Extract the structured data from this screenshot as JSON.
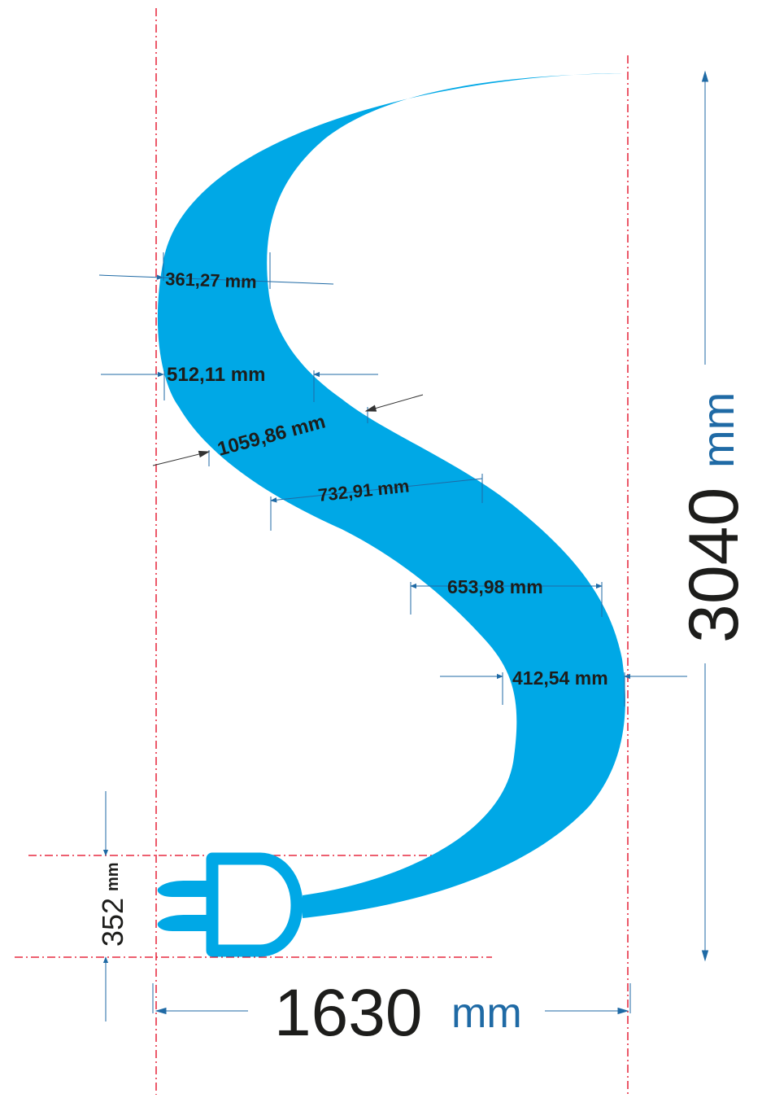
{
  "colors": {
    "shape": "#00a8e6",
    "guide": "#e2001a",
    "dimension": "#1f6aa5",
    "text": "#1d1d1b"
  },
  "dimensions": {
    "width": {
      "value": "1630",
      "unit": "mm"
    },
    "height": {
      "value": "3040",
      "unit": "mm"
    },
    "plug_height": {
      "value": "352",
      "unit": "mm"
    }
  },
  "measurements": [
    {
      "label": "361,27 mm"
    },
    {
      "label": "512,11 mm"
    },
    {
      "label": "1059,86 mm"
    },
    {
      "label": "732,91 mm"
    },
    {
      "label": "653,98 mm"
    },
    {
      "label": "412,54 mm"
    }
  ],
  "icons": [
    "plug-icon",
    "s-shape"
  ]
}
